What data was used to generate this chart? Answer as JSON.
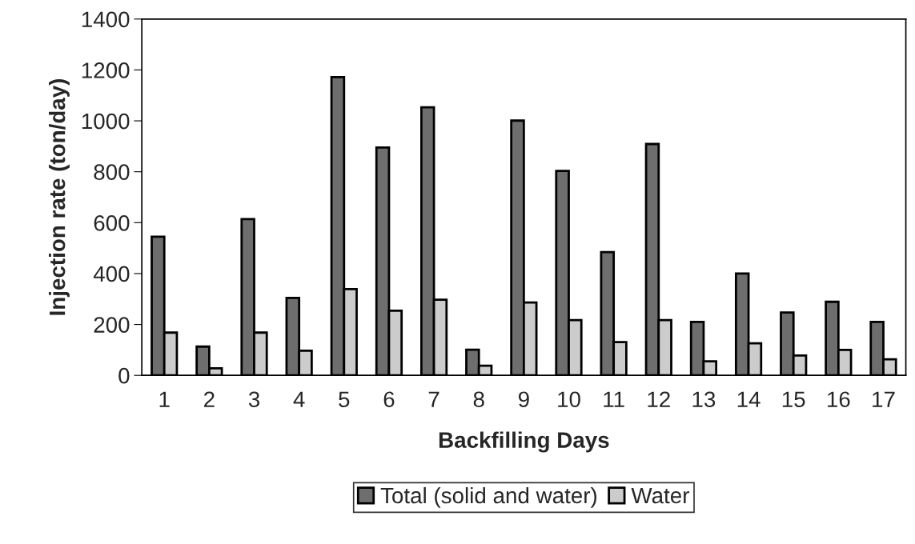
{
  "chart_data": {
    "type": "bar",
    "xlabel": "Backfilling Days",
    "ylabel": "Injection rate (ton/day)",
    "categories": [
      "1",
      "2",
      "3",
      "4",
      "5",
      "6",
      "7",
      "8",
      "9",
      "10",
      "11",
      "12",
      "13",
      "14",
      "15",
      "16",
      "17"
    ],
    "series": [
      {
        "name": "Total (solid and water)",
        "color": "#6e6e6e",
        "values": [
          545,
          113,
          614,
          304,
          1172,
          895,
          1053,
          101,
          1001,
          803,
          484,
          909,
          210,
          400,
          247,
          289,
          210
        ]
      },
      {
        "name": "Water",
        "color": "#cccccc",
        "values": [
          168,
          28,
          168,
          97,
          339,
          254,
          297,
          38,
          286,
          217,
          131,
          217,
          55,
          126,
          78,
          100,
          63
        ]
      }
    ],
    "ylim": [
      0,
      1400
    ],
    "yticks": [
      0,
      200,
      400,
      600,
      800,
      1000,
      1200,
      1400
    ],
    "grid": false,
    "legend": "bottom"
  }
}
